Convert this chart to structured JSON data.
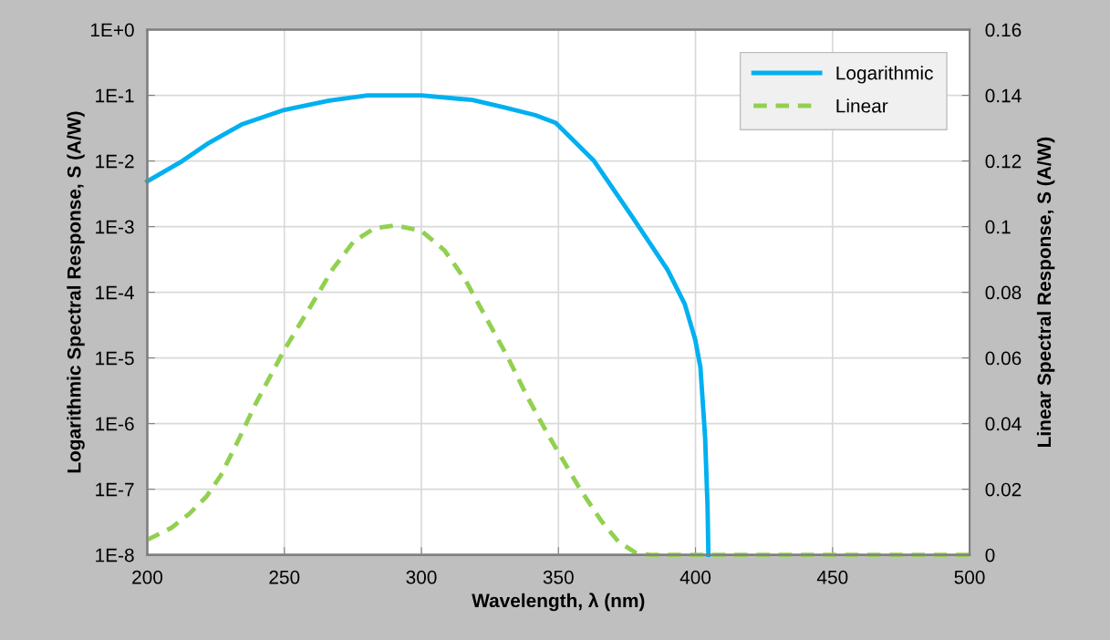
{
  "chart_data": {
    "type": "line",
    "xlabel": "Wavelength, λ (nm)",
    "ylabel": "Logarithmic Spectral Response, S (A/W)",
    "y2label": "Linear Spectral Response, S (A/W)",
    "xlim": [
      200,
      500
    ],
    "xticks": [
      200,
      250,
      300,
      350,
      400,
      450,
      500
    ],
    "log": "y",
    "ylim": [
      1e-08,
      1
    ],
    "yticks": [
      {
        "value": 1,
        "label": "1E+0"
      },
      {
        "value": 0.1,
        "label": "1E-1"
      },
      {
        "value": 0.01,
        "label": "1E-2"
      },
      {
        "value": 0.001,
        "label": "1E-3"
      },
      {
        "value": 0.0001,
        "label": "1E-4"
      },
      {
        "value": 1e-05,
        "label": "1E-5"
      },
      {
        "value": 1e-06,
        "label": "1E-6"
      },
      {
        "value": 1e-07,
        "label": "1E-7"
      },
      {
        "value": 1e-08,
        "label": "1E-8"
      }
    ],
    "y2lim": [
      0,
      0.16
    ],
    "y2ticks": [
      0,
      0.02,
      0.04,
      0.06,
      0.08,
      0.1,
      0.12,
      0.14,
      0.16
    ],
    "grid": true,
    "legend": "top right",
    "series": [
      {
        "name": "Logarithmic",
        "color": "#00b0f0",
        "line_style": "solid",
        "x": [
          200,
          212.8,
          221.7,
          234.4,
          250,
          266.3,
          280.4,
          291.8,
          300,
          318.6,
          330,
          341.5,
          349,
          363,
          377,
          389.8,
          396.1,
          399.9,
          401.8,
          403.5,
          404.4,
          404.7
        ],
        "values": [
          0.0049,
          0.01,
          0.018,
          0.036,
          0.06,
          0.083,
          0.1,
          0.1,
          0.1,
          0.085,
          0.066,
          0.05,
          0.038,
          0.01,
          0.0014,
          0.00022,
          6.6e-05,
          1.9e-05,
          7.2e-06,
          6.3e-07,
          5.4e-08,
          1e-08
        ]
      },
      {
        "name": "Linear",
        "color": "#92d050",
        "line_style": "dashed",
        "axis": "y2",
        "x": [
          200,
          208.9,
          215.3,
          221.7,
          226.8,
          233.2,
          239.5,
          250,
          260,
          267.6,
          275.3,
          282.9,
          290.6,
          300,
          308.4,
          316,
          323.7,
          331.4,
          339,
          346.7,
          349,
          357.9,
          365.6,
          371.9,
          378.3,
          383.3,
          400,
          450,
          500
        ],
        "values": [
          0.0046,
          0.0083,
          0.0125,
          0.0179,
          0.0242,
          0.0349,
          0.046,
          0.0625,
          0.0763,
          0.087,
          0.0955,
          0.0995,
          0.1004,
          0.0987,
          0.0928,
          0.0838,
          0.0721,
          0.0604,
          0.0476,
          0.0359,
          0.0327,
          0.02,
          0.0104,
          0.004,
          0.0006,
          0,
          0,
          0,
          0
        ]
      }
    ]
  }
}
